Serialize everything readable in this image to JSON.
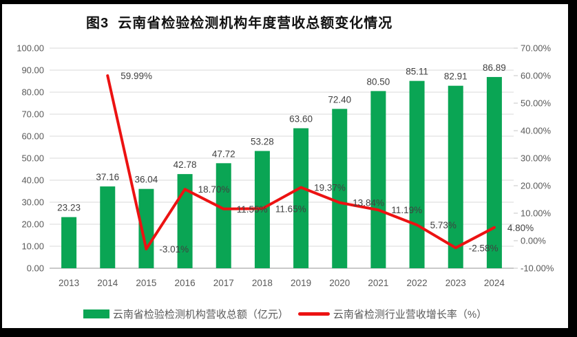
{
  "window": {
    "background_color": "#000000",
    "card_color": "#ffffff"
  },
  "chart_data": {
    "type": "combo: bar + line (dual axis)",
    "title": "图3  云南省检验检测机构年度营收总额变化情况",
    "categories": [
      "2013",
      "2014",
      "2015",
      "2016",
      "2017",
      "2018",
      "2019",
      "2020",
      "2021",
      "2022",
      "2023",
      "2024"
    ],
    "series": [
      {
        "name": "云南省检验检测机构营收总额（亿元）",
        "type": "bar",
        "axis": "left",
        "color": "#0aa554",
        "values": [
          23.23,
          37.16,
          36.04,
          42.78,
          47.72,
          53.28,
          63.6,
          72.4,
          80.5,
          85.11,
          82.91,
          86.89
        ],
        "labels": [
          "23.23",
          "37.16",
          "36.04",
          "42.78",
          "47.72",
          "53.28",
          "63.60",
          "72.40",
          "80.50",
          "85.11",
          "82.91",
          "86.89"
        ]
      },
      {
        "name": "云南省检测行业营收增长率（%）",
        "type": "line",
        "axis": "right",
        "color": "#ec1212",
        "values": [
          null,
          59.99,
          -3.01,
          18.7,
          11.55,
          11.65,
          19.37,
          13.84,
          11.19,
          5.73,
          -2.58,
          4.8
        ],
        "labels": [
          null,
          "59.99%",
          "-3.01%",
          "18.70%",
          "11.55%",
          "11.65%",
          "19.37%",
          "13.84%",
          "11.19%",
          "5.73%",
          "-2.58%",
          "4.80%"
        ]
      }
    ],
    "left_axis": {
      "min": 0,
      "max": 100,
      "step": 10,
      "tick_labels_top_to_bottom": [
        "100.00",
        "90.00",
        "80.00",
        "70.00",
        "60.00",
        "50.00",
        "40.00",
        "30.00",
        "20.00",
        "10.00",
        "0.00"
      ]
    },
    "right_axis": {
      "min": -10,
      "max": 70,
      "step": 10,
      "tick_labels_top_to_bottom": [
        "70.00%",
        "60.00%",
        "50.00%",
        "40.00%",
        "30.00%",
        "20.00%",
        "10.00%",
        "0.00%",
        "-10.00%"
      ]
    },
    "grid": true,
    "legend_position": "bottom",
    "style": {
      "gridline_color": "#d9d9d9",
      "axis_line_color": "#c9c9c9",
      "axis_text_color": "#595959",
      "data_label_color": "#404040"
    }
  }
}
